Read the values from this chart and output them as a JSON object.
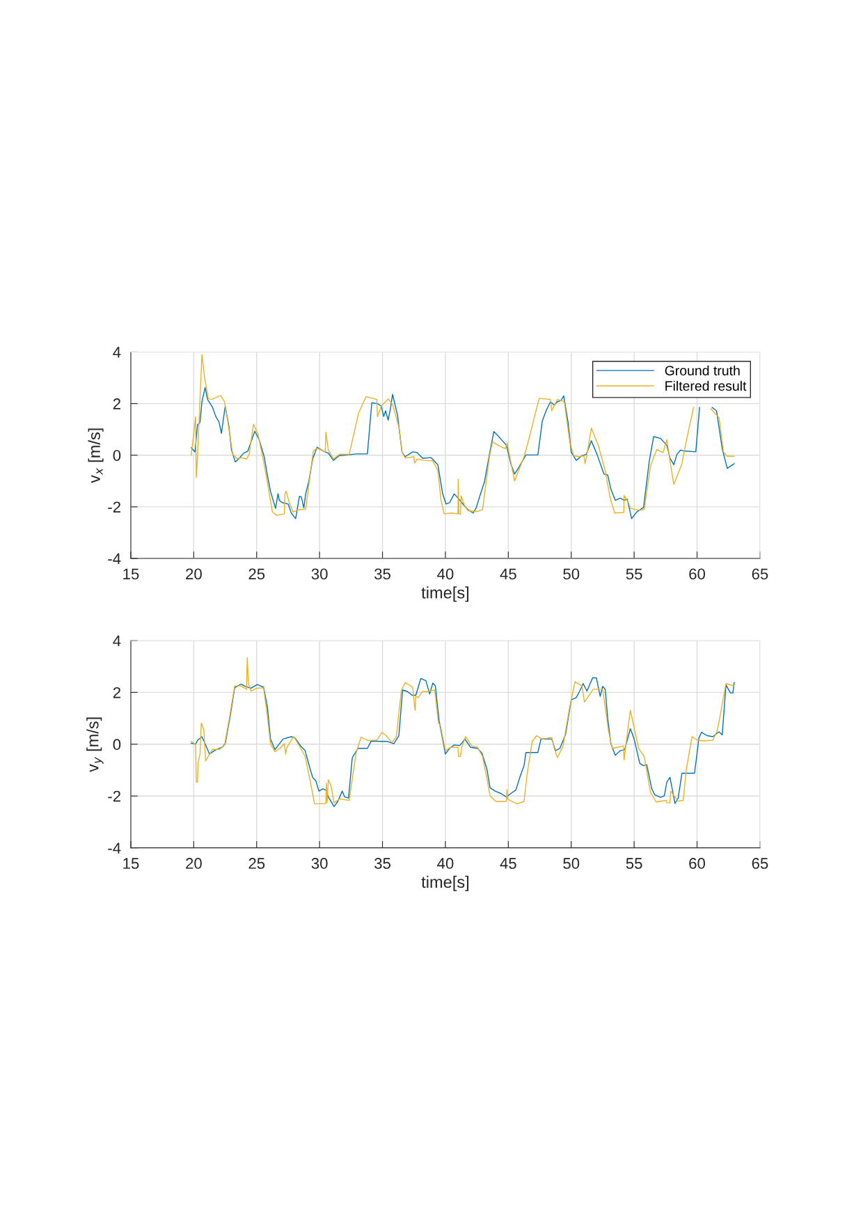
{
  "chart_data": [
    {
      "type": "line",
      "xlabel": "time[s]",
      "ylabel": "v$_{x}$ [m/s]",
      "xlim": [
        15,
        65
      ],
      "ylim": [
        -4,
        4
      ],
      "xticks": [
        15,
        20,
        25,
        30,
        35,
        40,
        45,
        50,
        55,
        60,
        65
      ],
      "yticks": [
        -4,
        -2,
        0,
        2,
        4
      ],
      "grid": true,
      "legend": "top right",
      "line_style": "solid",
      "marker": "none",
      "series": [
        {
          "name": "Ground truth",
          "color": "#0072bd",
          "x": [
            19.8,
            20.1,
            20.3,
            20.5,
            20.65,
            20.9,
            21.1,
            21.5,
            21.75,
            22.0,
            22.2,
            22.5,
            22.8,
            23.0,
            23.3,
            23.6,
            23.95,
            24.3,
            24.85,
            25.2,
            25.6,
            25.85,
            26.1,
            26.5,
            26.7,
            26.8,
            27.05,
            27.5,
            27.75,
            28.1,
            28.4,
            28.55,
            28.75,
            28.9,
            29.15,
            29.45,
            29.8,
            30.3,
            30.7,
            31.1,
            31.55,
            32.2,
            32.95,
            33.8,
            34.15,
            34.6,
            34.9,
            35.1,
            35.25,
            35.45,
            35.65,
            35.8,
            36.2,
            36.55,
            36.8,
            37.4,
            37.75,
            38.2,
            38.85,
            39.4,
            39.78,
            40.05,
            40.33,
            40.7,
            41.0,
            41.45,
            41.8,
            42.2,
            42.45,
            42.75,
            43.1,
            43.5,
            43.85,
            44.2,
            44.85,
            45.2,
            45.5,
            45.85,
            46.4,
            47.35,
            47.7,
            48.0,
            48.35,
            48.65,
            48.9,
            49.2,
            49.4,
            49.75,
            50.0,
            50.4,
            50.85,
            51.2,
            51.6,
            52.05,
            52.6,
            52.9,
            53.15,
            53.5,
            53.9,
            54.2,
            54.45,
            54.8,
            55.2,
            55.75,
            56.2,
            56.55,
            57.1,
            57.6,
            57.85,
            58.15,
            58.4,
            58.7,
            59.0,
            59.9,
            60.2,
            60.7,
            61.2,
            61.55,
            62.0,
            62.4,
            62.95
          ],
          "values": [
            0.29,
            0.13,
            1.18,
            1.27,
            2.07,
            2.62,
            2.16,
            1.85,
            1.5,
            1.3,
            0.85,
            1.9,
            1.1,
            0.2,
            -0.26,
            -0.13,
            0.07,
            0.16,
            0.93,
            0.6,
            -0.06,
            -0.77,
            -1.4,
            -2.06,
            -1.49,
            -1.75,
            -1.84,
            -1.89,
            -2.24,
            -2.46,
            -1.59,
            -1.62,
            -2.04,
            -1.49,
            -1.0,
            -0.15,
            0.31,
            0.16,
            0.08,
            -0.2,
            -0.02,
            0.01,
            0.05,
            0.05,
            2.03,
            2.0,
            1.9,
            1.5,
            1.72,
            1.36,
            1.85,
            2.36,
            1.54,
            0.12,
            -0.06,
            0.13,
            0.1,
            -0.12,
            -0.09,
            -0.37,
            -1.49,
            -1.89,
            -1.84,
            -1.5,
            -1.66,
            -1.93,
            -2.11,
            -2.24,
            -2.04,
            -1.56,
            -1.04,
            0.03,
            0.92,
            0.74,
            0.38,
            -0.33,
            -0.73,
            -0.46,
            0.01,
            0.01,
            1.32,
            1.72,
            2.07,
            1.94,
            2.07,
            2.12,
            2.3,
            1.27,
            0.12,
            -0.2,
            -0.02,
            0.03,
            0.56,
            0.03,
            -0.73,
            -0.77,
            -1.31,
            -1.75,
            -1.66,
            -1.75,
            -1.7,
            -2.46,
            -2.2,
            -2.02,
            -0.24,
            0.72,
            0.65,
            0.38,
            -0.11,
            -0.37,
            0.03,
            0.2,
            0.16,
            0.13,
            1.85,
            null,
            1.85,
            1.72,
            0.25,
            -0.51,
            -0.33
          ]
        },
        {
          "name": "Filtered result",
          "color": "#edb120",
          "x": [
            19.8,
            20.15,
            20.2,
            20.3,
            20.65,
            20.85,
            21.15,
            21.4,
            22.15,
            22.45,
            22.8,
            23.1,
            23.45,
            23.75,
            24.2,
            24.4,
            24.75,
            25.1,
            25.55,
            25.95,
            26.25,
            26.6,
            27.2,
            27.25,
            27.35,
            27.6,
            27.9,
            28.35,
            28.9,
            29.15,
            29.5,
            29.8,
            30.45,
            30.5,
            30.7,
            31.1,
            31.6,
            32.35,
            33.1,
            33.7,
            34.55,
            34.6,
            34.9,
            35.45,
            35.8,
            36.3,
            36.55,
            36.8,
            37.5,
            37.55,
            37.75,
            38.3,
            39.0,
            39.4,
            39.65,
            39.9,
            40.5,
            41.0,
            41.02,
            41.07,
            41.2,
            41.25,
            41.5,
            41.8,
            42.55,
            42.95,
            43.5,
            43.75,
            44.2,
            44.75,
            44.9,
            45.5,
            46.25,
            46.6,
            47.45,
            48.35,
            48.45,
            48.9,
            49.45,
            49.9,
            50.2,
            50.65,
            51.0,
            51.1,
            51.25,
            51.6,
            52.15,
            52.7,
            53.1,
            53.45,
            54.18,
            54.2,
            54.55,
            54.7,
            55.45,
            55.8,
            56.3,
            56.8,
            57.3,
            57.6,
            57.8,
            58.15,
            58.8,
            59.15,
            59.7,
            59.75,
            60.7,
            61.1,
            61.75,
            62.1,
            62.4,
            62.95
          ],
          "values": [
            0.0,
            1.49,
            -0.86,
            -0.06,
            3.9,
            3.05,
            2.2,
            2.16,
            2.31,
            2.07,
            1.0,
            0.03,
            -0.13,
            -0.1,
            -0.15,
            0.03,
            1.2,
            0.83,
            -0.24,
            -1.31,
            -2.2,
            -2.33,
            -2.27,
            -1.49,
            -1.4,
            -1.84,
            -2.2,
            -2.11,
            -2.09,
            -1.13,
            0.16,
            0.27,
            0.13,
            0.89,
            0.2,
            -0.15,
            0.04,
            0.03,
            1.63,
            2.27,
            2.16,
            1.49,
            1.9,
            2.18,
            1.98,
            1.1,
            0.12,
            -0.11,
            -0.06,
            -0.31,
            -0.15,
            -0.2,
            -0.22,
            -0.6,
            -1.75,
            -2.27,
            -2.24,
            -2.27,
            -0.93,
            -2.27,
            -2.29,
            -1.57,
            -1.93,
            -2.15,
            -2.18,
            -2.11,
            -0.06,
            0.52,
            0.38,
            0.25,
            0.47,
            -1.0,
            -0.06,
            0.56,
            2.2,
            2.16,
            1.72,
            2.16,
            2.07,
            0.47,
            -0.02,
            -0.06,
            -0.02,
            -0.33,
            0.03,
            1.05,
            0.38,
            -0.6,
            -1.66,
            -2.24,
            -2.22,
            -1.56,
            -1.84,
            -2.06,
            -2.13,
            -2.09,
            -0.42,
            0.22,
            0.1,
            0.6,
            -0.06,
            -1.13,
            -0.33,
            0.56,
            1.8,
            1.85,
            null,
            1.8,
            1.45,
            0.12,
            -0.04,
            -0.04
          ]
        }
      ]
    },
    {
      "type": "line",
      "xlabel": "time[s]",
      "ylabel": "v$_{y}$ [m/s]",
      "xlim": [
        15,
        65
      ],
      "ylim": [
        -4,
        4
      ],
      "xticks": [
        15,
        20,
        25,
        30,
        35,
        40,
        45,
        50,
        55,
        60,
        65
      ],
      "yticks": [
        -4,
        -2,
        0,
        2,
        4
      ],
      "grid": true,
      "line_style": "solid",
      "marker": "none",
      "series": [
        {
          "color": "#0072bd",
          "x": [
            19.8,
            20.15,
            20.3,
            20.65,
            20.9,
            21.25,
            21.7,
            22.25,
            22.5,
            22.9,
            23.25,
            23.75,
            24.1,
            24.55,
            25.05,
            25.55,
            25.85,
            26.1,
            26.45,
            27.1,
            27.75,
            28.05,
            28.5,
            28.85,
            29.25,
            29.45,
            29.7,
            29.95,
            30.25,
            30.5,
            30.7,
            31.15,
            31.45,
            31.8,
            32.0,
            32.3,
            32.6,
            33.05,
            33.8,
            34.1,
            34.8,
            35.35,
            35.9,
            36.3,
            36.6,
            37.0,
            37.35,
            37.65,
            38.05,
            38.45,
            38.75,
            39.0,
            39.2,
            39.5,
            40.0,
            40.33,
            40.7,
            41.15,
            41.55,
            42.0,
            42.55,
            42.9,
            43.3,
            43.55,
            43.95,
            44.4,
            44.85,
            45.2,
            45.6,
            45.95,
            46.25,
            46.4,
            47.35,
            47.6,
            48.45,
            48.75,
            49.1,
            49.55,
            50.0,
            50.4,
            50.65,
            50.95,
            51.25,
            51.7,
            52.0,
            52.3,
            52.5,
            52.7,
            52.9,
            53.15,
            53.5,
            53.9,
            54.25,
            54.7,
            55.0,
            55.45,
            55.75,
            56.0,
            56.4,
            56.65,
            57.1,
            57.4,
            57.6,
            57.85,
            58.25,
            58.5,
            58.8,
            59.8,
            60.15,
            60.35,
            60.8,
            61.25,
            61.75,
            62.0,
            62.3,
            62.65,
            62.85,
            62.95
          ],
          "values": [
            0.04,
            0.0,
            0.15,
            0.29,
            0.02,
            -0.38,
            -0.23,
            -0.12,
            0.02,
            1.09,
            2.18,
            2.32,
            2.23,
            2.16,
            2.3,
            2.2,
            1.45,
            0.2,
            -0.21,
            0.2,
            0.29,
            0.24,
            -0.07,
            -0.25,
            -0.96,
            -1.28,
            -1.41,
            -1.81,
            -1.72,
            -1.77,
            -2.04,
            -2.41,
            -2.21,
            -1.81,
            -2.04,
            -2.08,
            -0.52,
            -0.16,
            -0.16,
            0.12,
            0.11,
            0.11,
            0.02,
            0.33,
            2.09,
            2.03,
            1.89,
            1.89,
            2.54,
            2.45,
            1.94,
            2.36,
            2.25,
            0.91,
            -0.38,
            -0.16,
            -0.03,
            -0.05,
            0.2,
            -0.12,
            -0.16,
            -0.34,
            -0.96,
            -1.68,
            -1.81,
            -1.9,
            -2.04,
            -1.9,
            -1.77,
            -1.23,
            -0.83,
            -0.32,
            -0.32,
            0.21,
            0.2,
            -0.25,
            -0.16,
            0.38,
            1.71,
            1.8,
            2.03,
            2.34,
            2.05,
            2.56,
            2.56,
            1.85,
            2.23,
            2.12,
            1.0,
            0.02,
            -0.43,
            -0.25,
            -0.21,
            0.6,
            0.2,
            -0.74,
            -0.83,
            -0.79,
            -1.72,
            -1.96,
            -2.05,
            -1.99,
            -1.46,
            -1.28,
            -2.29,
            -2.08,
            -1.12,
            -1.12,
            0.24,
            0.46,
            0.33,
            0.29,
            0.48,
            0.36,
            2.29,
            1.98,
            1.98,
            2.38
          ]
        },
        {
          "color": "#edb120",
          "x": [
            19.8,
            20.05,
            20.15,
            20.2,
            20.3,
            20.35,
            20.5,
            20.6,
            20.8,
            20.95,
            21.2,
            21.5,
            22.05,
            22.45,
            22.8,
            23.25,
            23.75,
            24.2,
            24.25,
            24.35,
            24.55,
            25.0,
            25.55,
            25.85,
            26.1,
            26.45,
            26.85,
            27.2,
            27.3,
            27.4,
            27.95,
            28.5,
            28.85,
            29.25,
            29.6,
            29.95,
            30.5,
            30.55,
            30.6,
            30.7,
            30.9,
            31.15,
            31.6,
            32.0,
            32.35,
            32.9,
            33.3,
            33.8,
            34.55,
            34.95,
            35.3,
            35.75,
            36.1,
            36.5,
            36.8,
            37.4,
            37.55,
            37.6,
            37.65,
            37.85,
            38.15,
            38.5,
            39.15,
            39.45,
            39.6,
            40.0,
            40.4,
            41.0,
            41.05,
            41.2,
            41.3,
            41.6,
            42.1,
            42.55,
            42.95,
            43.3,
            43.55,
            44.0,
            44.85,
            44.9,
            44.95,
            45.3,
            45.7,
            46.25,
            46.5,
            46.9,
            47.25,
            47.7,
            48.45,
            48.65,
            48.9,
            49.35,
            49.85,
            50.3,
            50.85,
            51.05,
            51.3,
            51.75,
            52.5,
            52.7,
            52.95,
            53.25,
            53.7,
            54.15,
            54.2,
            54.45,
            54.7,
            55.0,
            55.35,
            55.8,
            56.3,
            56.75,
            57.55,
            57.6,
            57.85,
            57.9,
            58.25,
            58.5,
            58.9,
            59.15,
            59.6,
            60.05,
            60.5,
            61.25,
            61.6,
            61.9,
            62.3,
            62.95
          ],
          "values": [
            0.11,
            0.02,
            0.0,
            -1.46,
            -1.46,
            -0.7,
            -0.38,
            0.82,
            0.55,
            -0.65,
            -0.43,
            -0.2,
            -0.2,
            -0.03,
            0.91,
            2.25,
            2.25,
            2.12,
            3.34,
            2.34,
            2.05,
            2.16,
            2.18,
            1.09,
            0.02,
            -0.29,
            -0.16,
            0.02,
            -0.38,
            -0.12,
            0.3,
            -0.16,
            -0.47,
            -1.41,
            -2.3,
            -2.3,
            -2.29,
            -1.5,
            -2.25,
            -1.37,
            -1.59,
            -2.26,
            -2.11,
            -2.14,
            -2.17,
            -0.34,
            0.27,
            0.15,
            0.15,
            0.45,
            0.33,
            0.06,
            0.29,
            2.07,
            2.38,
            2.2,
            1.45,
            1.31,
            1.85,
            1.8,
            2.03,
            2.03,
            2.09,
            0.82,
            0.73,
            -0.25,
            -0.12,
            -0.12,
            -0.47,
            -0.47,
            -0.12,
            0.29,
            -0.07,
            -0.12,
            -0.47,
            -1.32,
            -1.99,
            -2.21,
            -2.21,
            -1.75,
            -2.12,
            -2.21,
            -2.3,
            -2.21,
            -1.14,
            0.11,
            0.33,
            0.2,
            0.26,
            -0.16,
            -0.52,
            -0.07,
            1.36,
            2.41,
            2.25,
            1.63,
            1.8,
            2.12,
            2.12,
            1.45,
            0.55,
            -0.16,
            -0.12,
            -0.07,
            -0.61,
            0.38,
            1.31,
            0.64,
            -0.16,
            -0.47,
            -1.86,
            -2.23,
            -2.17,
            -2.26,
            -2.26,
            -1.81,
            -2.04,
            -2.2,
            -2.17,
            -0.96,
            0.29,
            0.15,
            0.13,
            0.15,
            0.51,
            1.27,
            2.34,
            2.25
          ]
        }
      ]
    }
  ]
}
